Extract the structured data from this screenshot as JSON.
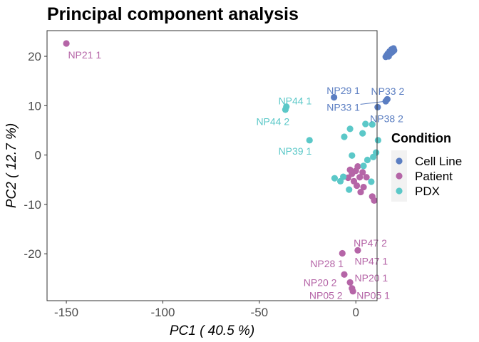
{
  "chart_data": {
    "type": "scatter",
    "title": "Principal component analysis",
    "xlabel": "PC1 ( 40.5 %)",
    "ylabel": "PC2 ( 12.7 %)",
    "xlim": [
      -160,
      11
    ],
    "ylim": [
      -29.5,
      25.2
    ],
    "x_ticks": [
      -150,
      -100,
      -50,
      0
    ],
    "x_tick_labels": [
      "-150",
      "-100",
      "-50",
      "0"
    ],
    "y_ticks": [
      -20,
      -10,
      0,
      10,
      20
    ],
    "y_tick_labels": [
      "-20",
      "-10",
      "0",
      "10",
      "20"
    ],
    "grid": false,
    "legend": {
      "title": "Condition",
      "placement": "right",
      "entries": [
        "Cell Line",
        "Patient",
        "PDX"
      ]
    },
    "colors": {
      "Cell Line": "#5b7ec2",
      "Patient": "#b565a7",
      "PDX": "#5bc8c8"
    },
    "series": [
      {
        "name": "Cell Line",
        "points": [
          {
            "x": 15.5,
            "y": 19.9
          },
          {
            "x": 16.5,
            "y": 20.5
          },
          {
            "x": 17.5,
            "y": 21.0
          },
          {
            "x": 18.5,
            "y": 21.4
          },
          {
            "x": 19.5,
            "y": 21.6
          },
          {
            "x": 16.0,
            "y": 20.2
          },
          {
            "x": 18.0,
            "y": 20.6
          },
          {
            "x": 19.0,
            "y": 20.9
          },
          {
            "x": 17.0,
            "y": 20.0
          },
          {
            "x": 19.8,
            "y": 21.2
          },
          {
            "x": -11.3,
            "y": 11.7
          },
          {
            "x": 16.3,
            "y": 11.3
          },
          {
            "x": 15.5,
            "y": 10.9
          },
          {
            "x": 11.3,
            "y": 9.7
          }
        ]
      },
      {
        "name": "Patient",
        "points": [
          {
            "x": -150.0,
            "y": 22.6
          },
          {
            "x": -2.0,
            "y": -3.8
          },
          {
            "x": 0.0,
            "y": -3.2
          },
          {
            "x": 2.0,
            "y": -4.5
          },
          {
            "x": -1.0,
            "y": -5.3
          },
          {
            "x": 3.5,
            "y": -3.5
          },
          {
            "x": 5.5,
            "y": -4.5
          },
          {
            "x": 0.5,
            "y": -6.2
          },
          {
            "x": 2.5,
            "y": -7.5
          },
          {
            "x": -4.0,
            "y": -4.6
          },
          {
            "x": 4.0,
            "y": -6.5
          },
          {
            "x": 8.5,
            "y": -8.4
          },
          {
            "x": 9.5,
            "y": -9.2
          },
          {
            "x": -3.0,
            "y": -3.0
          },
          {
            "x": 1.0,
            "y": -2.3
          },
          {
            "x": 1.0,
            "y": -19.3
          },
          {
            "x": -7.0,
            "y": -19.9
          },
          {
            "x": -6.0,
            "y": -24.2
          },
          {
            "x": -3.0,
            "y": -25.8
          },
          {
            "x": -2.0,
            "y": -27.0
          },
          {
            "x": -1.5,
            "y": -27.6
          }
        ]
      },
      {
        "name": "PDX",
        "points": [
          {
            "x": -36.5,
            "y": 9.2
          },
          {
            "x": -36.0,
            "y": 9.8
          },
          {
            "x": -24.0,
            "y": 3.0
          },
          {
            "x": -3.0,
            "y": 5.3
          },
          {
            "x": 5.0,
            "y": 6.3
          },
          {
            "x": 8.5,
            "y": 6.2
          },
          {
            "x": -6.0,
            "y": 3.7
          },
          {
            "x": 3.5,
            "y": 4.4
          },
          {
            "x": 11.5,
            "y": 3.0
          },
          {
            "x": 10.5,
            "y": 0.5
          },
          {
            "x": -2.0,
            "y": -0.1
          },
          {
            "x": 9.0,
            "y": -0.4
          },
          {
            "x": 6.0,
            "y": -1.0
          },
          {
            "x": 4.0,
            "y": -2.2
          },
          {
            "x": -11.0,
            "y": -4.7
          },
          {
            "x": -8.0,
            "y": -5.3
          },
          {
            "x": -6.5,
            "y": -4.4
          },
          {
            "x": -3.5,
            "y": -7.0
          },
          {
            "x": 8.0,
            "y": -5.4
          }
        ]
      }
    ],
    "annotations": [
      {
        "text": "NP21 1",
        "series": "Patient",
        "x": -150.0,
        "y": 22.6,
        "label_x": -140.5,
        "label_y": 20.3
      },
      {
        "text": "NP29 1",
        "series": "Cell Line",
        "x": -11.3,
        "y": 11.7,
        "label_x": -6.5,
        "label_y": 13.1
      },
      {
        "text": "NP33 2",
        "series": "Cell Line",
        "x": 16.3,
        "y": 11.3,
        "label_x": 16.5,
        "label_y": 12.9
      },
      {
        "text": "NP33 1",
        "series": "Cell Line",
        "x": 15.5,
        "y": 10.9,
        "label_x": -6.5,
        "label_y": 9.7,
        "leader": true
      },
      {
        "text": "NP38 2",
        "series": "Cell Line",
        "x": 11.3,
        "y": 9.7,
        "label_x": 16.0,
        "label_y": 7.4
      },
      {
        "text": "NP44 1",
        "series": "PDX",
        "x": -36.0,
        "y": 9.8,
        "label_x": -31.5,
        "label_y": 11.0
      },
      {
        "text": "NP44 2",
        "series": "PDX",
        "x": -36.5,
        "y": 9.2,
        "label_x": -43.0,
        "label_y": 6.8
      },
      {
        "text": "NP39 1",
        "series": "PDX",
        "x": -24.0,
        "y": 3.0,
        "label_x": -31.5,
        "label_y": 0.8
      },
      {
        "text": "NP47 2",
        "series": "Patient",
        "x": 1.0,
        "y": -19.3,
        "label_x": 7.5,
        "label_y": -17.8
      },
      {
        "text": "NP47 1",
        "series": "Patient",
        "x": 1.0,
        "y": -19.3,
        "label_x": 8.0,
        "label_y": -21.5
      },
      {
        "text": "NP28 1",
        "series": "Patient",
        "x": -7.0,
        "y": -19.9,
        "label_x": -15.0,
        "label_y": -22.0
      },
      {
        "text": "NP20 1",
        "series": "Patient",
        "x": -3.0,
        "y": -25.8,
        "label_x": 8.0,
        "label_y": -24.9
      },
      {
        "text": "NP20 2",
        "series": "Patient",
        "x": -6.0,
        "y": -24.2,
        "label_x": -18.5,
        "label_y": -25.8
      },
      {
        "text": "NP05 2",
        "series": "Patient",
        "x": -2.0,
        "y": -27.0,
        "label_x": -15.5,
        "label_y": -28.4
      },
      {
        "text": "NP05 1",
        "series": "Patient",
        "x": -1.5,
        "y": -27.6,
        "label_x": 9.0,
        "label_y": -28.4
      }
    ]
  }
}
